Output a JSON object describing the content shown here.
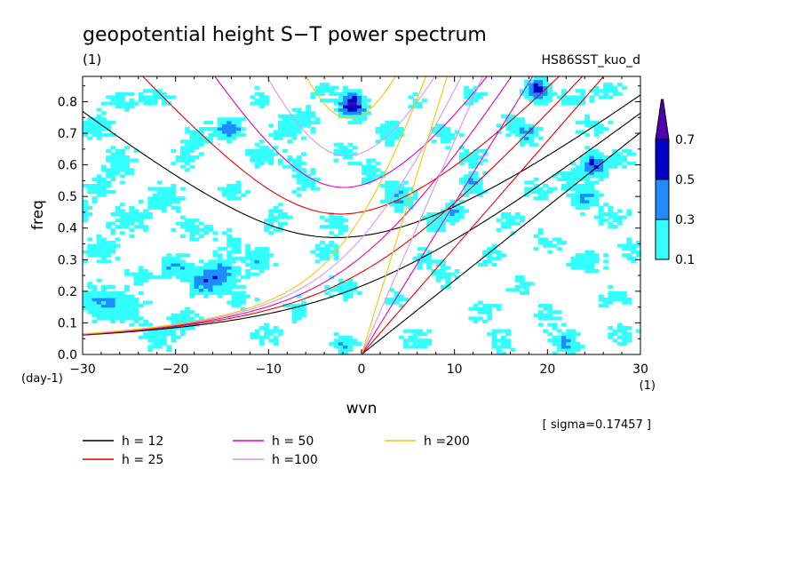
{
  "chart_data": {
    "type": "heatmap",
    "title": "geopotential height S−T power spectrum",
    "subtitle_left": "(1)",
    "subtitle_right": "HS86SST_kuo_d",
    "xlabel": "wvn",
    "ylabel": "freq",
    "x_unit": "(1)",
    "y_unit": "(day-1)",
    "xlim": [
      -30,
      30
    ],
    "ylim": [
      0,
      0.88
    ],
    "x_ticks": [
      -30,
      -20,
      -10,
      0,
      10,
      20,
      30
    ],
    "x_tick_labels": [
      "−30",
      "−20",
      "−10",
      "0",
      "10",
      "20",
      "30"
    ],
    "y_ticks": [
      0.0,
      0.1,
      0.2,
      0.3,
      0.4,
      0.5,
      0.6,
      0.7,
      0.8
    ],
    "y_tick_labels": [
      "0.0",
      "0.1",
      "0.2",
      "0.3",
      "0.4",
      "0.5",
      "0.6",
      "0.7",
      "0.8"
    ],
    "sigma_text": "[ sigma=0.17457 ]",
    "colorbar": {
      "levels": [
        0.1,
        0.3,
        0.5,
        0.7
      ],
      "level_labels": [
        "0.1",
        "0.3",
        "0.5",
        "0.7"
      ],
      "colors": [
        "#33ffff",
        "#1e8cff",
        "#0000c8",
        "#5000b4"
      ]
    },
    "dispersion_curves": [
      {
        "label": "h = 12",
        "h": 12,
        "color": "#000000"
      },
      {
        "label": "h = 25",
        "h": 25,
        "color": "#e60000"
      },
      {
        "label": "h = 50",
        "h": 50,
        "color": "#e600b4"
      },
      {
        "label": "h =100",
        "h": 100,
        "color": "#dc96e6"
      },
      {
        "label": "h =200",
        "h": 200,
        "color": "#f0c800"
      }
    ],
    "field_blobs": [
      [
        -26,
        0.8,
        2.0,
        0.012,
        0.2
      ],
      [
        -22,
        0.81,
        1.8,
        0.01,
        0.22
      ],
      [
        -11,
        0.81,
        1.6,
        0.011,
        0.2
      ],
      [
        -1,
        0.79,
        1.4,
        0.012,
        0.78
      ],
      [
        6,
        0.8,
        1.2,
        0.01,
        0.2
      ],
      [
        19,
        0.84,
        1.4,
        0.012,
        0.58
      ],
      [
        23,
        0.81,
        2.0,
        0.012,
        0.22
      ],
      [
        27,
        0.84,
        1.8,
        0.01,
        0.2
      ],
      [
        -29,
        0.72,
        2.2,
        0.014,
        0.24
      ],
      [
        -15,
        0.71,
        1.6,
        0.012,
        0.2
      ],
      [
        -14,
        0.72,
        1.2,
        0.01,
        0.36
      ],
      [
        -8,
        0.71,
        1.8,
        0.012,
        0.2
      ],
      [
        3,
        0.7,
        1.4,
        0.012,
        0.3
      ],
      [
        16,
        0.73,
        1.6,
        0.012,
        0.22
      ],
      [
        18,
        0.7,
        1.2,
        0.01,
        0.35
      ],
      [
        25,
        0.72,
        1.8,
        0.012,
        0.2
      ],
      [
        -26,
        0.61,
        2.2,
        0.014,
        0.22
      ],
      [
        -19,
        0.62,
        1.8,
        0.012,
        0.2
      ],
      [
        -11,
        0.63,
        2.0,
        0.012,
        0.24
      ],
      [
        -2,
        0.64,
        1.6,
        0.012,
        0.2
      ],
      [
        12,
        0.63,
        1.6,
        0.012,
        0.22
      ],
      [
        25,
        0.6,
        1.4,
        0.012,
        0.55
      ],
      [
        28,
        0.62,
        1.6,
        0.01,
        0.2
      ],
      [
        -28,
        0.53,
        2.0,
        0.012,
        0.22
      ],
      [
        -21,
        0.5,
        2.2,
        0.014,
        0.24
      ],
      [
        -14,
        0.52,
        1.8,
        0.012,
        0.2
      ],
      [
        -6,
        0.54,
        1.6,
        0.012,
        0.22
      ],
      [
        4,
        0.5,
        1.6,
        0.014,
        0.36
      ],
      [
        12,
        0.54,
        1.4,
        0.012,
        0.34
      ],
      [
        19,
        0.52,
        1.8,
        0.012,
        0.2
      ],
      [
        24,
        0.5,
        1.4,
        0.012,
        0.4
      ],
      [
        -25,
        0.43,
        2.2,
        0.014,
        0.24
      ],
      [
        -18,
        0.4,
        2.0,
        0.012,
        0.22
      ],
      [
        -9,
        0.43,
        1.8,
        0.014,
        0.2
      ],
      [
        -3,
        0.41,
        1.6,
        0.012,
        0.22
      ],
      [
        10,
        0.45,
        1.4,
        0.01,
        0.34
      ],
      [
        16,
        0.42,
        1.8,
        0.012,
        0.2
      ],
      [
        27,
        0.44,
        2.0,
        0.012,
        0.22
      ],
      [
        -28,
        0.33,
        2.0,
        0.014,
        0.24
      ],
      [
        -20,
        0.28,
        1.6,
        0.012,
        0.36
      ],
      [
        -15,
        0.26,
        1.8,
        0.014,
        0.4
      ],
      [
        -11,
        0.3,
        1.4,
        0.012,
        0.34
      ],
      [
        -4,
        0.32,
        1.8,
        0.012,
        0.2
      ],
      [
        7,
        0.3,
        1.6,
        0.012,
        0.22
      ],
      [
        14,
        0.31,
        1.8,
        0.012,
        0.2
      ],
      [
        24,
        0.29,
        2.2,
        0.014,
        0.24
      ],
      [
        -17,
        0.23,
        1.6,
        0.012,
        0.42
      ],
      [
        -28,
        0.17,
        2.4,
        0.016,
        0.32
      ],
      [
        -25,
        0.14,
        2.2,
        0.014,
        0.24
      ],
      [
        -19,
        0.11,
        1.6,
        0.012,
        0.3
      ],
      [
        -13,
        0.18,
        1.6,
        0.012,
        0.2
      ],
      [
        -2,
        0.21,
        1.8,
        0.012,
        0.22
      ],
      [
        4,
        0.17,
        1.6,
        0.012,
        0.2
      ],
      [
        13,
        0.14,
        1.8,
        0.012,
        0.2
      ],
      [
        20,
        0.12,
        1.6,
        0.012,
        0.22
      ],
      [
        27,
        0.18,
        2.0,
        0.012,
        0.2
      ],
      [
        -22,
        0.05,
        1.8,
        0.012,
        0.22
      ],
      [
        -10,
        0.06,
        2.0,
        0.012,
        0.2
      ],
      [
        -2,
        0.03,
        1.4,
        0.01,
        0.32
      ],
      [
        6,
        0.05,
        1.8,
        0.012,
        0.22
      ],
      [
        15,
        0.04,
        1.6,
        0.012,
        0.2
      ],
      [
        22,
        0.04,
        1.6,
        0.012,
        0.34
      ],
      [
        28,
        0.06,
        1.8,
        0.012,
        0.22
      ],
      [
        -6,
        0.75,
        1.6,
        0.012,
        0.22
      ],
      [
        9,
        0.7,
        1.6,
        0.012,
        0.22
      ],
      [
        -18,
        0.69,
        1.6,
        0.012,
        0.2
      ],
      [
        1,
        0.58,
        1.6,
        0.012,
        0.22
      ],
      [
        -7,
        0.6,
        1.4,
        0.012,
        0.2
      ],
      [
        8,
        0.42,
        1.4,
        0.012,
        0.22
      ],
      [
        20,
        0.36,
        1.6,
        0.012,
        0.2
      ],
      [
        -14,
        0.36,
        1.4,
        0.012,
        0.22
      ],
      [
        -7,
        0.15,
        1.4,
        0.012,
        0.22
      ],
      [
        9,
        0.25,
        1.4,
        0.012,
        0.2
      ],
      [
        -24,
        0.25,
        1.6,
        0.012,
        0.22
      ],
      [
        17,
        0.22,
        1.4,
        0.01,
        0.2
      ],
      [
        22,
        0.56,
        1.4,
        0.01,
        0.22
      ],
      [
        -30,
        0.45,
        1.2,
        0.012,
        0.22
      ],
      [
        29,
        0.33,
        1.2,
        0.012,
        0.22
      ],
      [
        -4,
        0.84,
        1.4,
        0.01,
        0.22
      ],
      [
        12,
        0.82,
        1.4,
        0.01,
        0.2
      ]
    ]
  }
}
